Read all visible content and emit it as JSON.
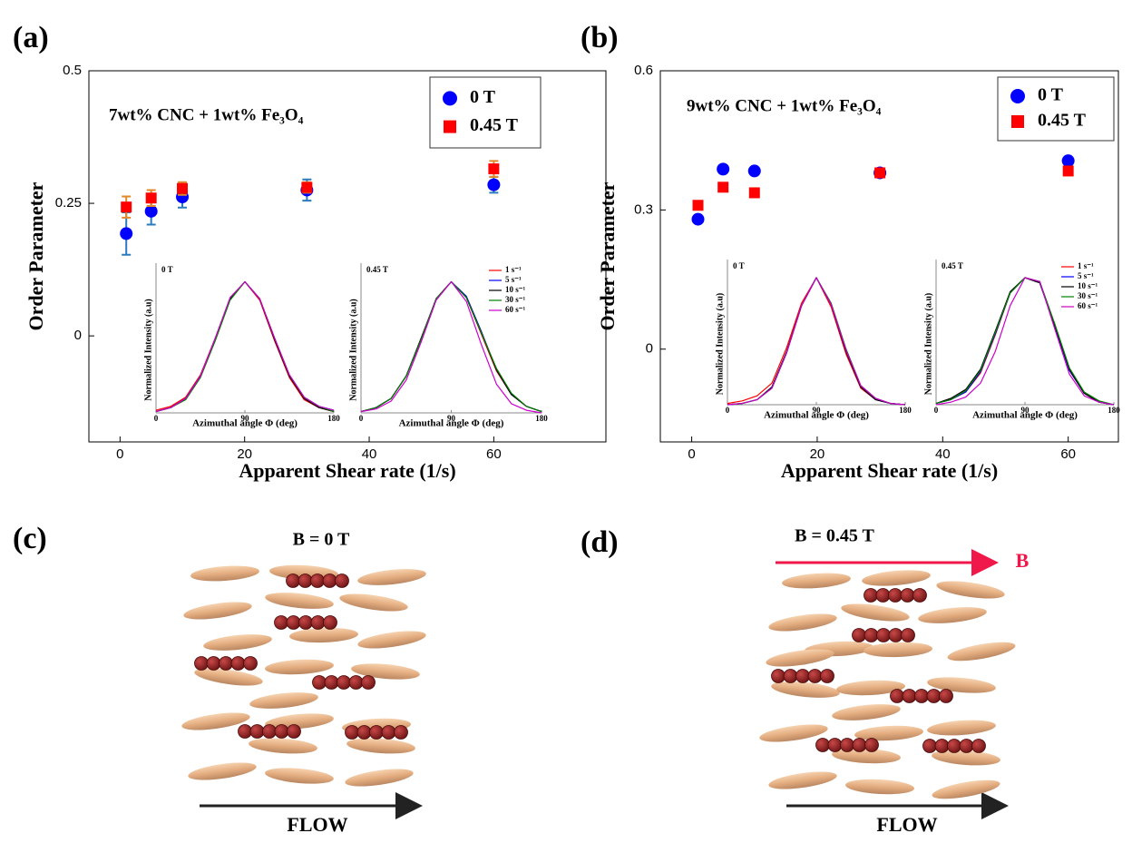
{
  "chart_data": [
    {
      "type": "scatter",
      "panel_label": "(a)",
      "annotation": "7wt% CNC + 1wt% Fe₃O₄",
      "xlabel": "Apparent Shear rate (1/s)",
      "ylabel": "Order Parameter",
      "xlim": [
        -5,
        78
      ],
      "xticks": [
        0,
        20,
        40,
        60
      ],
      "ylim": [
        -0.2,
        0.5
      ],
      "yticks": [
        0,
        0.25,
        0.5
      ],
      "legend": "upper right",
      "series": [
        {
          "name": "0 T",
          "color": "#0000ff",
          "marker": "circle",
          "error_color": "#2b7bbd",
          "x": [
            1,
            5,
            10,
            30,
            60
          ],
          "values": [
            0.193,
            0.235,
            0.262,
            0.275,
            0.285
          ],
          "errors": [
            0.04,
            0.025,
            0.02,
            0.02,
            0.015
          ]
        },
        {
          "name": "0.45 T",
          "color": "#ff0000",
          "marker": "square",
          "error_color": "#e0892b",
          "x": [
            1,
            5,
            10,
            30,
            60
          ],
          "values": [
            0.243,
            0.26,
            0.278,
            0.28,
            0.315
          ],
          "errors": [
            0.02,
            0.015,
            0.012,
            0.01,
            0.015
          ]
        }
      ],
      "insets": [
        {
          "type": "line",
          "title": "0 T",
          "xlabel": "Azimuthal angle Φ (deg)",
          "ylabel": "Normalized Intensity (a.u)",
          "xlim": [
            0,
            180
          ],
          "xticks": [
            0,
            90,
            180
          ],
          "ylim": [
            0,
            1.1
          ],
          "x": [
            0,
            15,
            30,
            45,
            60,
            75,
            90,
            105,
            120,
            135,
            150,
            165,
            180
          ],
          "series": [
            {
              "color": "#ff0000",
              "values": [
                0.02,
                0.05,
                0.12,
                0.29,
                0.57,
                0.87,
                1,
                0.86,
                0.55,
                0.27,
                0.1,
                0.04,
                0.01
              ]
            },
            {
              "color": "#0000ff",
              "values": [
                0.01,
                0.04,
                0.11,
                0.28,
                0.56,
                0.87,
                1,
                0.87,
                0.57,
                0.29,
                0.12,
                0.05,
                0.02
              ]
            },
            {
              "color": "#000000",
              "values": [
                0.01,
                0.04,
                0.11,
                0.28,
                0.56,
                0.87,
                1,
                0.87,
                0.56,
                0.28,
                0.11,
                0.04,
                0.01
              ]
            },
            {
              "color": "#008000",
              "values": [
                0.01,
                0.04,
                0.1,
                0.27,
                0.55,
                0.86,
                1,
                0.87,
                0.57,
                0.29,
                0.12,
                0.05,
                0.01
              ]
            },
            {
              "color": "#cc00cc",
              "values": [
                0.01,
                0.04,
                0.11,
                0.28,
                0.57,
                0.88,
                1,
                0.87,
                0.57,
                0.29,
                0.12,
                0.05,
                0.02
              ]
            }
          ]
        },
        {
          "type": "line",
          "title": "0.45 T",
          "xlabel": "Azimuthal angle Φ (deg)",
          "ylabel": "Normalized Intensity (a.u)",
          "xlim": [
            0,
            180
          ],
          "xticks": [
            0,
            90,
            180
          ],
          "ylim": [
            0,
            1.1
          ],
          "x": [
            0,
            15,
            30,
            45,
            60,
            75,
            90,
            105,
            120,
            135,
            150,
            165,
            180
          ],
          "series": [
            {
              "name": "1 s⁻¹",
              "color": "#ff0000",
              "values": [
                0.01,
                0.04,
                0.11,
                0.28,
                0.56,
                0.87,
                1,
                0.88,
                0.6,
                0.32,
                0.14,
                0.05,
                0.01
              ]
            },
            {
              "name": "5 s⁻¹",
              "color": "#0000ff",
              "values": [
                0.01,
                0.04,
                0.11,
                0.28,
                0.56,
                0.87,
                1,
                0.89,
                0.62,
                0.33,
                0.14,
                0.05,
                0.01
              ]
            },
            {
              "name": "10 s⁻¹",
              "color": "#000000",
              "values": [
                0.01,
                0.04,
                0.11,
                0.28,
                0.57,
                0.87,
                1,
                0.88,
                0.61,
                0.33,
                0.14,
                0.05,
                0.01
              ]
            },
            {
              "name": "30 s⁻¹",
              "color": "#008000",
              "values": [
                0.01,
                0.04,
                0.11,
                0.28,
                0.56,
                0.87,
                1,
                0.88,
                0.61,
                0.34,
                0.15,
                0.05,
                0.01
              ]
            },
            {
              "name": "60 s⁻¹",
              "color": "#cc00cc",
              "values": [
                0.01,
                0.03,
                0.09,
                0.25,
                0.54,
                0.86,
                1,
                0.85,
                0.52,
                0.22,
                0.07,
                0.02,
                0.0
              ]
            }
          ]
        }
      ]
    },
    {
      "type": "scatter",
      "panel_label": "(b)",
      "annotation": "9wt% CNC + 1wt% Fe₃O₄",
      "xlabel": "Apparent Shear rate (1/s)",
      "ylabel": "Order Parameter",
      "xlim": [
        -5,
        68
      ],
      "xticks": [
        0,
        20,
        40,
        60
      ],
      "ylim": [
        -0.2,
        0.6
      ],
      "yticks": [
        0,
        0.3,
        0.6
      ],
      "legend": "upper right",
      "series": [
        {
          "name": "0 T",
          "color": "#0000ff",
          "marker": "circle",
          "x": [
            1,
            5,
            10,
            30,
            60
          ],
          "values": [
            0.28,
            0.388,
            0.384,
            0.38,
            0.406
          ]
        },
        {
          "name": "0.45 T",
          "color": "#ff0000",
          "marker": "square",
          "x": [
            1,
            5,
            10,
            30,
            60
          ],
          "values": [
            0.31,
            0.349,
            0.337,
            0.38,
            0.384
          ]
        }
      ],
      "insets": [
        {
          "type": "line",
          "title": "0 T",
          "xlabel": "Azimuthal angle Φ (deg)",
          "ylabel": "Normalized Intensity (a.u)",
          "xlim": [
            0,
            180
          ],
          "xticks": [
            0,
            90,
            180
          ],
          "ylim": [
            0,
            1.1
          ],
          "x": [
            0,
            15,
            30,
            45,
            60,
            75,
            90,
            105,
            120,
            135,
            150,
            165,
            180
          ],
          "series": [
            {
              "color": "#ff0000",
              "values": [
                0.01,
                0.03,
                0.07,
                0.17,
                0.45,
                0.8,
                1,
                0.77,
                0.4,
                0.13,
                0.04,
                0.01,
                0.0
              ]
            },
            {
              "color": "#0000ff",
              "values": [
                0.0,
                0.01,
                0.04,
                0.13,
                0.41,
                0.78,
                1,
                0.79,
                0.42,
                0.14,
                0.04,
                0.01,
                0.0
              ]
            },
            {
              "color": "#000000",
              "values": [
                0.0,
                0.01,
                0.04,
                0.14,
                0.42,
                0.78,
                1,
                0.79,
                0.42,
                0.14,
                0.04,
                0.01,
                0.0
              ]
            },
            {
              "color": "#008000",
              "values": [
                0.0,
                0.01,
                0.04,
                0.13,
                0.41,
                0.78,
                1,
                0.8,
                0.44,
                0.15,
                0.05,
                0.01,
                0.0
              ]
            },
            {
              "color": "#cc00cc",
              "values": [
                0.0,
                0.01,
                0.04,
                0.13,
                0.41,
                0.78,
                1,
                0.79,
                0.43,
                0.15,
                0.05,
                0.01,
                0.0
              ]
            }
          ]
        },
        {
          "type": "line",
          "title": "0.45 T",
          "xlabel": "Azimuthal angle Φ (deg)",
          "ylabel": "Normalized Intensity (a.u)",
          "xlim": [
            0,
            180
          ],
          "xticks": [
            0,
            90,
            180
          ],
          "ylim": [
            0,
            1.1
          ],
          "x": [
            0,
            15,
            30,
            45,
            60,
            75,
            90,
            105,
            120,
            135,
            150,
            165,
            180
          ],
          "series": [
            {
              "name": "1 s⁻¹",
              "color": "#ff0000",
              "values": [
                0.01,
                0.04,
                0.1,
                0.25,
                0.55,
                0.88,
                1,
                0.96,
                0.62,
                0.27,
                0.09,
                0.02,
                0.0
              ]
            },
            {
              "name": "5 s⁻¹",
              "color": "#0000ff",
              "values": [
                0.01,
                0.04,
                0.1,
                0.26,
                0.56,
                0.88,
                1,
                0.96,
                0.62,
                0.27,
                0.09,
                0.02,
                0.0
              ]
            },
            {
              "name": "10 s⁻¹",
              "color": "#000000",
              "values": [
                0.01,
                0.05,
                0.12,
                0.28,
                0.58,
                0.89,
                1,
                0.96,
                0.63,
                0.28,
                0.09,
                0.02,
                0.0
              ]
            },
            {
              "name": "30 s⁻¹",
              "color": "#008000",
              "values": [
                0.01,
                0.04,
                0.11,
                0.27,
                0.57,
                0.88,
                1,
                0.97,
                0.64,
                0.29,
                0.1,
                0.03,
                0.0
              ]
            },
            {
              "name": "60 s⁻¹",
              "color": "#cc00cc",
              "values": [
                0.0,
                0.02,
                0.06,
                0.17,
                0.42,
                0.78,
                1,
                0.97,
                0.6,
                0.24,
                0.07,
                0.02,
                0.0
              ]
            }
          ]
        }
      ]
    }
  ],
  "diagrams": [
    {
      "label": "(c)",
      "field": "B = 0 T",
      "flow": "FLOW"
    },
    {
      "label": "(d)",
      "field": "B = 0.45 T",
      "field_arrow_label": "B",
      "flow": "FLOW"
    }
  ]
}
